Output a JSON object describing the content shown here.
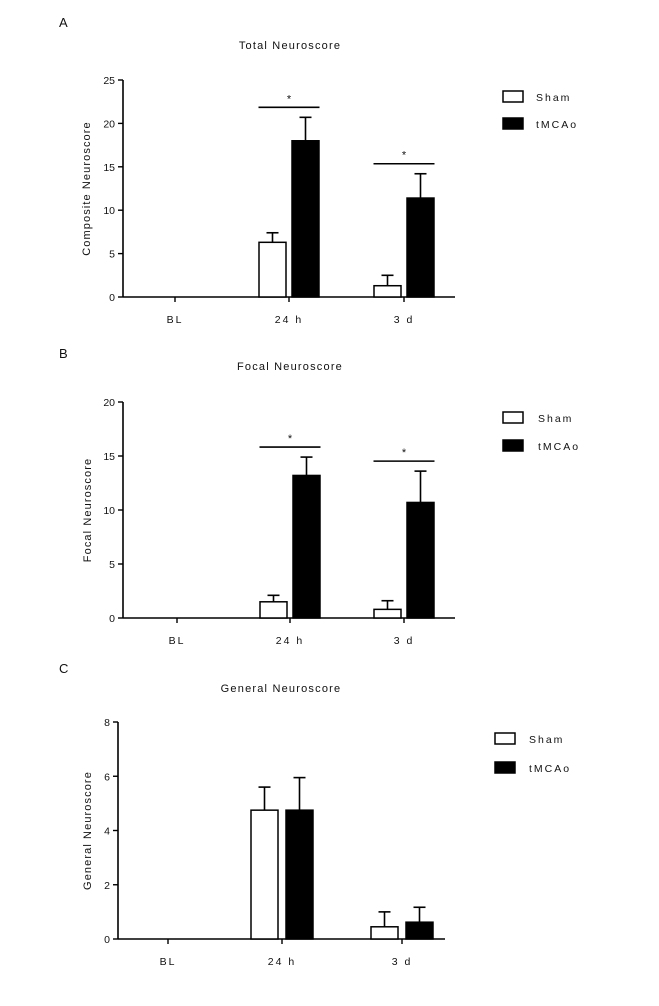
{
  "chart_data": [
    {
      "type": "bar",
      "panel": "A",
      "title": "Total Neuroscore",
      "xlabel": "",
      "ylabel": "Composite Neuroscore",
      "categories": [
        "BL",
        "24 h",
        "3 d"
      ],
      "ylim": [
        0,
        25
      ],
      "yticks": [
        "0",
        "5",
        "10",
        "15",
        "20",
        "25"
      ],
      "series": [
        {
          "name": "Sham",
          "color": "#ffffff",
          "values": [
            0,
            6.3,
            1.3
          ],
          "errors": [
            0,
            1.1,
            1.2
          ]
        },
        {
          "name": "tMCAo",
          "color": "#000000",
          "values": [
            0,
            18.0,
            11.4
          ],
          "errors": [
            0,
            2.7,
            2.8
          ]
        }
      ],
      "significance": [
        {
          "category": "24 h",
          "label": "*"
        },
        {
          "category": "3 d",
          "label": "*"
        }
      ],
      "legend": [
        "Sham",
        "tMCAo"
      ]
    },
    {
      "type": "bar",
      "panel": "B",
      "title": "Focal Neuroscore",
      "xlabel": "",
      "ylabel": "Focal Neuroscore",
      "categories": [
        "BL",
        "24 h",
        "3 d"
      ],
      "ylim": [
        0,
        20
      ],
      "yticks": [
        "0",
        "5",
        "10",
        "15",
        "20"
      ],
      "series": [
        {
          "name": "Sham",
          "color": "#ffffff",
          "values": [
            0,
            1.5,
            0.8
          ],
          "errors": [
            0,
            0.6,
            0.8
          ]
        },
        {
          "name": "tMCAo",
          "color": "#000000",
          "values": [
            0,
            13.2,
            10.7
          ],
          "errors": [
            0,
            1.7,
            2.9
          ]
        }
      ],
      "significance": [
        {
          "category": "24 h",
          "label": "*"
        },
        {
          "category": "3 d",
          "label": "*"
        }
      ],
      "legend": [
        "Sham",
        "tMCAo"
      ]
    },
    {
      "type": "bar",
      "panel": "C",
      "title": "General Neuroscore",
      "xlabel": "",
      "ylabel": "General Neuroscore",
      "categories": [
        "BL",
        "24 h",
        "3 d"
      ],
      "ylim": [
        0,
        8
      ],
      "yticks": [
        "0",
        "2",
        "4",
        "6",
        "8"
      ],
      "series": [
        {
          "name": "Sham",
          "color": "#ffffff",
          "values": [
            0,
            4.75,
            0.45
          ],
          "errors": [
            0,
            0.85,
            0.55
          ]
        },
        {
          "name": "tMCAo",
          "color": "#000000",
          "values": [
            0,
            4.75,
            0.62
          ],
          "errors": [
            0,
            1.2,
            0.55
          ]
        }
      ],
      "significance": [],
      "legend": [
        "Sham",
        "tMCAo"
      ]
    }
  ]
}
